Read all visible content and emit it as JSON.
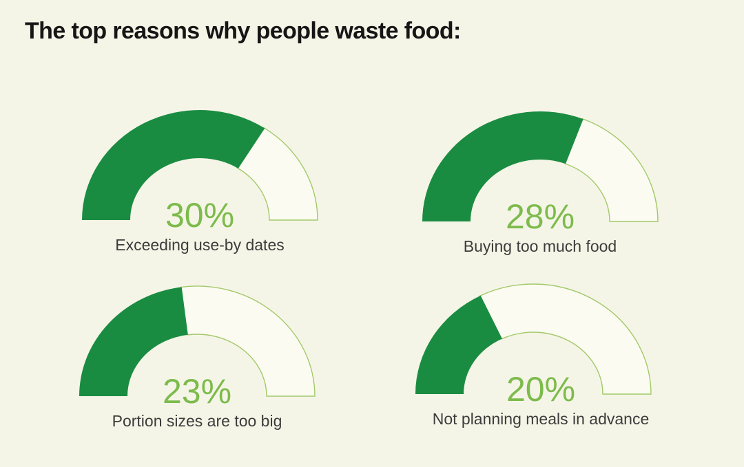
{
  "page": {
    "title": "The top reasons why people waste food:",
    "background": "#f5f5e7"
  },
  "colors": {
    "gauge_fill_green": "#1a8c42",
    "gauge_outline_green": "#a2c96a",
    "gauge_track_fill": "#fbfbf1",
    "percent_text_green": "#7dbb4c",
    "title_color": "#161616",
    "label_color": "#3c3c3c"
  },
  "chart_data": {
    "type": "gauge",
    "title": "The top reasons why people waste food:",
    "unit": "%",
    "items": [
      {
        "label": "Exceeding use-by dates",
        "value": 30,
        "display": "30%"
      },
      {
        "label": "Buying too much food",
        "value": 28,
        "display": "28%"
      },
      {
        "label": "Portion sizes are too big",
        "value": 23,
        "display": "23%"
      },
      {
        "label": "Not planning meals in advance",
        "value": 20,
        "display": "20%"
      }
    ],
    "layout_hints": {
      "gauge_shape": "semicircle",
      "arc_total_degrees": 180,
      "fill_degrees": [
        123,
        111,
        82,
        63
      ],
      "grid": "2x2",
      "legend": "none"
    }
  }
}
